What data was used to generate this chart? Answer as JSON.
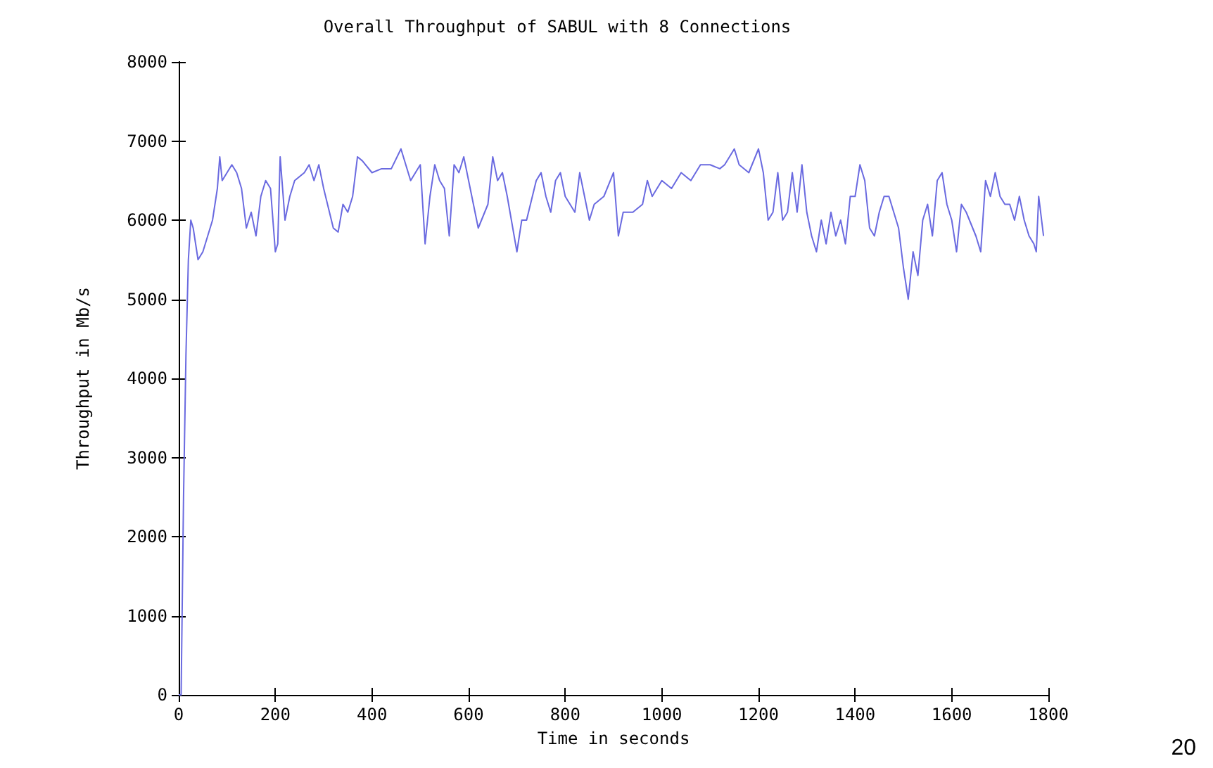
{
  "chart_data": {
    "type": "line",
    "title": "Overall Throughput of SABUL with 8 Connections",
    "xlabel": "Time in seconds",
    "ylabel": "Throughput in Mb/s",
    "x": [
      0,
      5,
      10,
      15,
      20,
      25,
      30,
      40,
      50,
      60,
      70,
      80,
      85,
      90,
      100,
      110,
      120,
      130,
      140,
      150,
      160,
      170,
      180,
      190,
      200,
      205,
      210,
      220,
      230,
      240,
      260,
      270,
      280,
      290,
      300,
      320,
      330,
      340,
      350,
      360,
      370,
      380,
      400,
      420,
      440,
      460,
      470,
      480,
      490,
      500,
      510,
      520,
      530,
      540,
      550,
      560,
      570,
      580,
      590,
      600,
      610,
      620,
      640,
      650,
      660,
      670,
      680,
      700,
      710,
      720,
      740,
      750,
      760,
      770,
      780,
      790,
      800,
      820,
      830,
      840,
      850,
      860,
      880,
      900,
      910,
      920,
      940,
      960,
      970,
      980,
      1000,
      1020,
      1040,
      1060,
      1080,
      1100,
      1120,
      1130,
      1150,
      1160,
      1180,
      1200,
      1210,
      1220,
      1230,
      1240,
      1250,
      1260,
      1270,
      1280,
      1290,
      1300,
      1310,
      1320,
      1330,
      1340,
      1350,
      1360,
      1370,
      1380,
      1390,
      1400,
      1410,
      1420,
      1430,
      1440,
      1450,
      1460,
      1470,
      1490,
      1500,
      1510,
      1520,
      1530,
      1540,
      1550,
      1560,
      1570,
      1580,
      1590,
      1600,
      1610,
      1620,
      1630,
      1650,
      1660,
      1670,
      1680,
      1690,
      1700,
      1710,
      1720,
      1730,
      1740,
      1750,
      1760,
      1770,
      1775,
      1780,
      1790
    ],
    "series": [
      {
        "color": "#6a6ae0",
        "values": [
          0,
          0,
          2500,
          4300,
          5500,
          6000,
          5900,
          5500,
          5600,
          5800,
          6000,
          6400,
          6800,
          6500,
          6600,
          6700,
          6600,
          6400,
          5900,
          6100,
          5800,
          6300,
          6500,
          6400,
          5600,
          5700,
          6800,
          6000,
          6300,
          6500,
          6600,
          6700,
          6500,
          6700,
          6400,
          5900,
          5850,
          6200,
          6100,
          6300,
          6800,
          6750,
          6600,
          6650,
          6650,
          6900,
          6700,
          6500,
          6600,
          6700,
          5700,
          6300,
          6700,
          6500,
          6400,
          5800,
          6700,
          6600,
          6800,
          6500,
          6200,
          5900,
          6200,
          6800,
          6500,
          6600,
          6300,
          5600,
          6000,
          6000,
          6500,
          6600,
          6300,
          6100,
          6500,
          6600,
          6300,
          6100,
          6600,
          6300,
          6000,
          6200,
          6300,
          6600,
          5800,
          6100,
          6100,
          6200,
          6500,
          6300,
          6500,
          6400,
          6600,
          6500,
          6700,
          6700,
          6650,
          6700,
          6900,
          6700,
          6600,
          6900,
          6600,
          6000,
          6100,
          6600,
          6000,
          6100,
          6600,
          6100,
          6700,
          6100,
          5800,
          5600,
          6000,
          5700,
          6100,
          5800,
          6000,
          5700,
          6300,
          6300,
          6700,
          6500,
          5900,
          5800,
          6100,
          6300,
          6300,
          5900,
          5400,
          5000,
          5600,
          5300,
          6000,
          6200,
          5800,
          6500,
          6600,
          6200,
          6000,
          5600,
          6200,
          6100,
          5800,
          5600,
          6500,
          6300,
          6600,
          6300,
          6200,
          6200,
          6000,
          6300,
          6000,
          5800,
          5700,
          5600,
          6300,
          5800
        ]
      }
    ],
    "xlim": [
      0,
      1800
    ],
    "xticks": [
      0,
      200,
      400,
      600,
      800,
      1000,
      1200,
      1400,
      1600,
      1800
    ],
    "ylim": [
      0,
      8000
    ],
    "yticks": [
      0,
      1000,
      2000,
      3000,
      4000,
      5000,
      6000,
      7000,
      8000
    ],
    "grid": false,
    "marker": "none",
    "line_style": "solid",
    "annotations": [
      "20"
    ]
  }
}
